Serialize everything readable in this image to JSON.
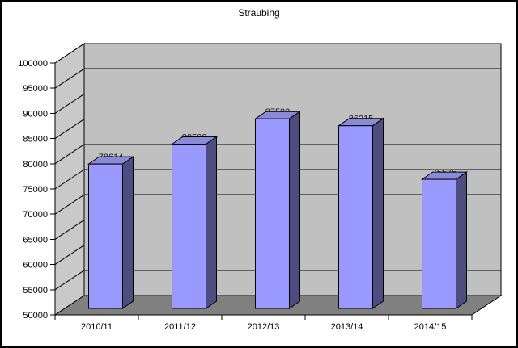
{
  "chart_data": {
    "type": "bar",
    "variant": "3d-column",
    "title": "Straubing",
    "categories": [
      "2010/11",
      "2011/12",
      "2012/13",
      "2013/14",
      "2014/15"
    ],
    "values": [
      78614,
      82566,
      87582,
      86215,
      75576
    ],
    "data_labels": [
      "78614",
      "82566",
      "87582",
      "86215",
      "75576"
    ],
    "xlabel": "",
    "ylabel": "",
    "ylim": [
      50000,
      100000
    ],
    "ytick_step": 5000,
    "ytick_labels": [
      "50000",
      "55000",
      "60000",
      "65000",
      "70000",
      "75000",
      "80000",
      "85000",
      "90000",
      "95000",
      "100000"
    ],
    "grid": true,
    "legend_position": "none",
    "colors": {
      "bar_front": "#9999ff",
      "bar_top": "#8a8ad8",
      "bar_side": "#4d4d80",
      "bar_outline": "#000000",
      "back_wall": "#c0c0c0",
      "side_wall": "#c9c9c9",
      "floor": "#808080",
      "gridline": "#000000",
      "text": "#000000",
      "data_label_text": "#1a1a1a",
      "background": "#ffffff",
      "frame_border": "#000000"
    }
  }
}
